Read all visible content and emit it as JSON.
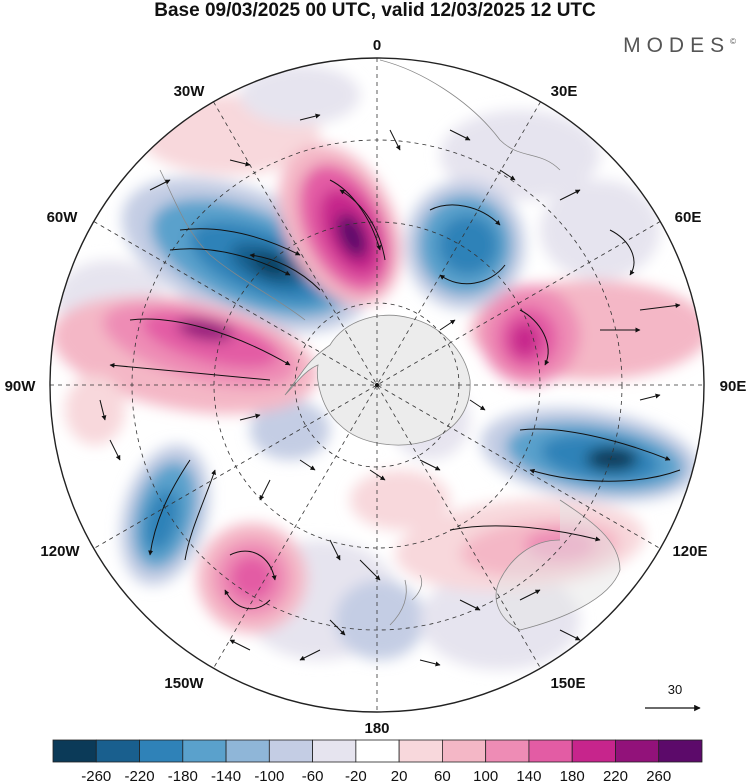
{
  "title": "Base 09/03/2025 00 UTC, valid 12/03/2025 12 UTC",
  "brand": "MODES",
  "brand_mark": "©",
  "longitude_labels": {
    "top": "0",
    "top_right": "30E",
    "right_upper": "60E",
    "right": "90E",
    "right_lower": "120E",
    "bottom_right": "150E",
    "bottom": "180",
    "bottom_left": "150W",
    "left_lower": "120W",
    "left": "90W",
    "left_upper": "60W",
    "top_left": "30W"
  },
  "vector_scale": {
    "label": "30",
    "icon": "arrow-right-icon"
  },
  "colorbar": {
    "labels": [
      "-260",
      "-220",
      "-180",
      "-140",
      "-100",
      "-60",
      "-20",
      "20",
      "60",
      "100",
      "140",
      "180",
      "220",
      "260"
    ],
    "colors": [
      "#0b3a58",
      "#195f8e",
      "#2f82b8",
      "#5aa1cc",
      "#8fb6d8",
      "#c4cde4",
      "#e6e4ef",
      "#ffffff",
      "#f8d8dc",
      "#f4b7c6",
      "#ee8cb5",
      "#e35ca4",
      "#c7258c",
      "#92127a",
      "#5c0a6a"
    ]
  },
  "chart_data": {
    "type": "heatmap",
    "projection": "south-polar-stereographic",
    "field_units_shown": "none",
    "anomaly_centers": [
      {
        "sign": "negative",
        "sector": "60W-40W",
        "level": -240
      },
      {
        "sign": "positive",
        "sector": "20W-0",
        "level": 240
      },
      {
        "sign": "negative",
        "sector": "30E-50E",
        "level": -180
      },
      {
        "sign": "positive",
        "sector": "70E-80E",
        "level": 200
      },
      {
        "sign": "negative",
        "sector": "100E-110E",
        "level": -260
      },
      {
        "sign": "positive",
        "sector": "120E-140E",
        "level": 120
      },
      {
        "sign": "positive",
        "sector": "80W-70W",
        "level": 220
      },
      {
        "sign": "negative",
        "sector": "115W-105W",
        "level": -200
      },
      {
        "sign": "positive",
        "sector": "150W-135W",
        "level": 200
      },
      {
        "sign": "negative",
        "sector": "175W-165W",
        "level": -100
      }
    ]
  }
}
